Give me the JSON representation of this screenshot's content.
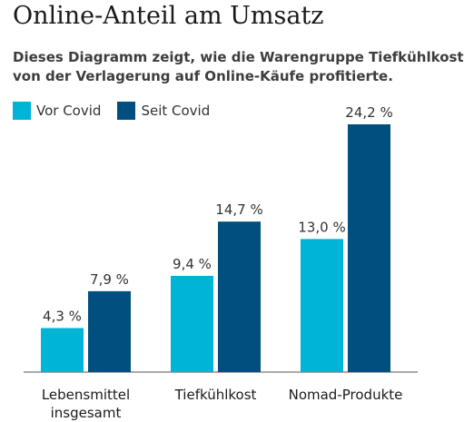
{
  "chart_data": {
    "type": "bar",
    "title": "Online-Anteil am Umsatz",
    "subtitle": "Dieses Diagramm zeigt, wie die Warengruppe Tiefkühlkost von der Verlagerung auf Online-Käufe profitierte.",
    "categories": [
      [
        "Lebensmittel",
        "insgesamt"
      ],
      [
        "Tiefkühlkost"
      ],
      [
        "Nomad-Produkte"
      ]
    ],
    "series": [
      {
        "name": "Vor Covid",
        "color": "#00b4d8",
        "values": [
          4.3,
          9.4,
          13.0
        ],
        "labels": [
          "4,3 %",
          "9,4 %",
          "13,0 %"
        ]
      },
      {
        "name": "Seit Covid",
        "color": "#004f7f",
        "values": [
          7.9,
          14.7,
          24.2
        ],
        "labels": [
          "7,9 %",
          "14,7 %",
          "24,2 %"
        ]
      }
    ],
    "ylim": [
      0,
      24.2
    ],
    "legend": "top-left",
    "grid": false
  }
}
